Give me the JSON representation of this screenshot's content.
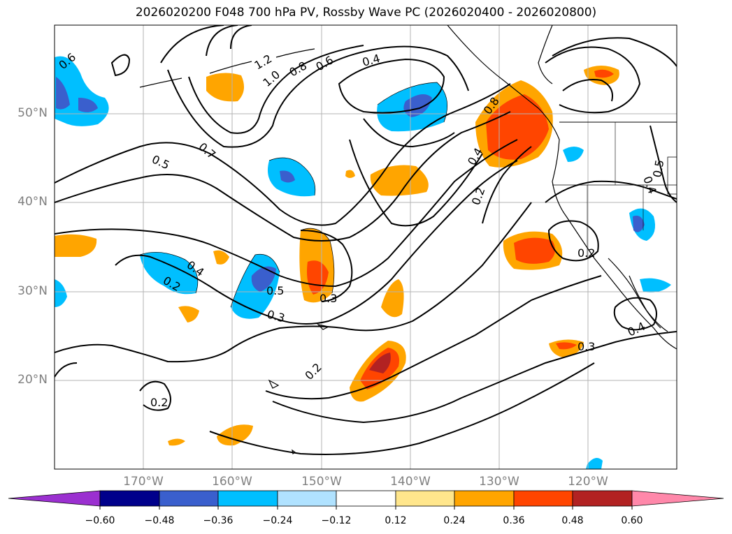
{
  "title": "2026020200 F048 700 hPa PV, Rossby Wave PC (2026020400 - 2026020800)",
  "lat_labels": [
    "50°N",
    "40°N",
    "30°N",
    "20°N"
  ],
  "lon_labels": [
    "170°W",
    "160°W",
    "150°W",
    "140°W",
    "130°W",
    "120°W"
  ],
  "contour_labels": [
    "0.6",
    "1.2",
    "1.0",
    "0.8",
    "0.6",
    "0.4",
    "0.7",
    "0.5",
    "0.4",
    "0.2",
    "0.5",
    "0.3",
    "0.3",
    "0.2",
    "0.2",
    "0.8",
    "0.4",
    "0.2",
    "0.2",
    "0.3",
    "0.4",
    "0.5",
    "0.4"
  ],
  "colorbar": {
    "labels": [
      "−0.60",
      "−0.48",
      "−0.36",
      "−0.24",
      "−0.12",
      "0.12",
      "0.24",
      "0.36",
      "0.48",
      "0.60"
    ],
    "colors": [
      "#9b30d0",
      "#00008b",
      "#3a5fcd",
      "#00bfff",
      "#b0e2ff",
      "#ffffff",
      "#ffe68c",
      "#ffa500",
      "#ff4500",
      "#b22222",
      "#ff88aa"
    ]
  }
}
